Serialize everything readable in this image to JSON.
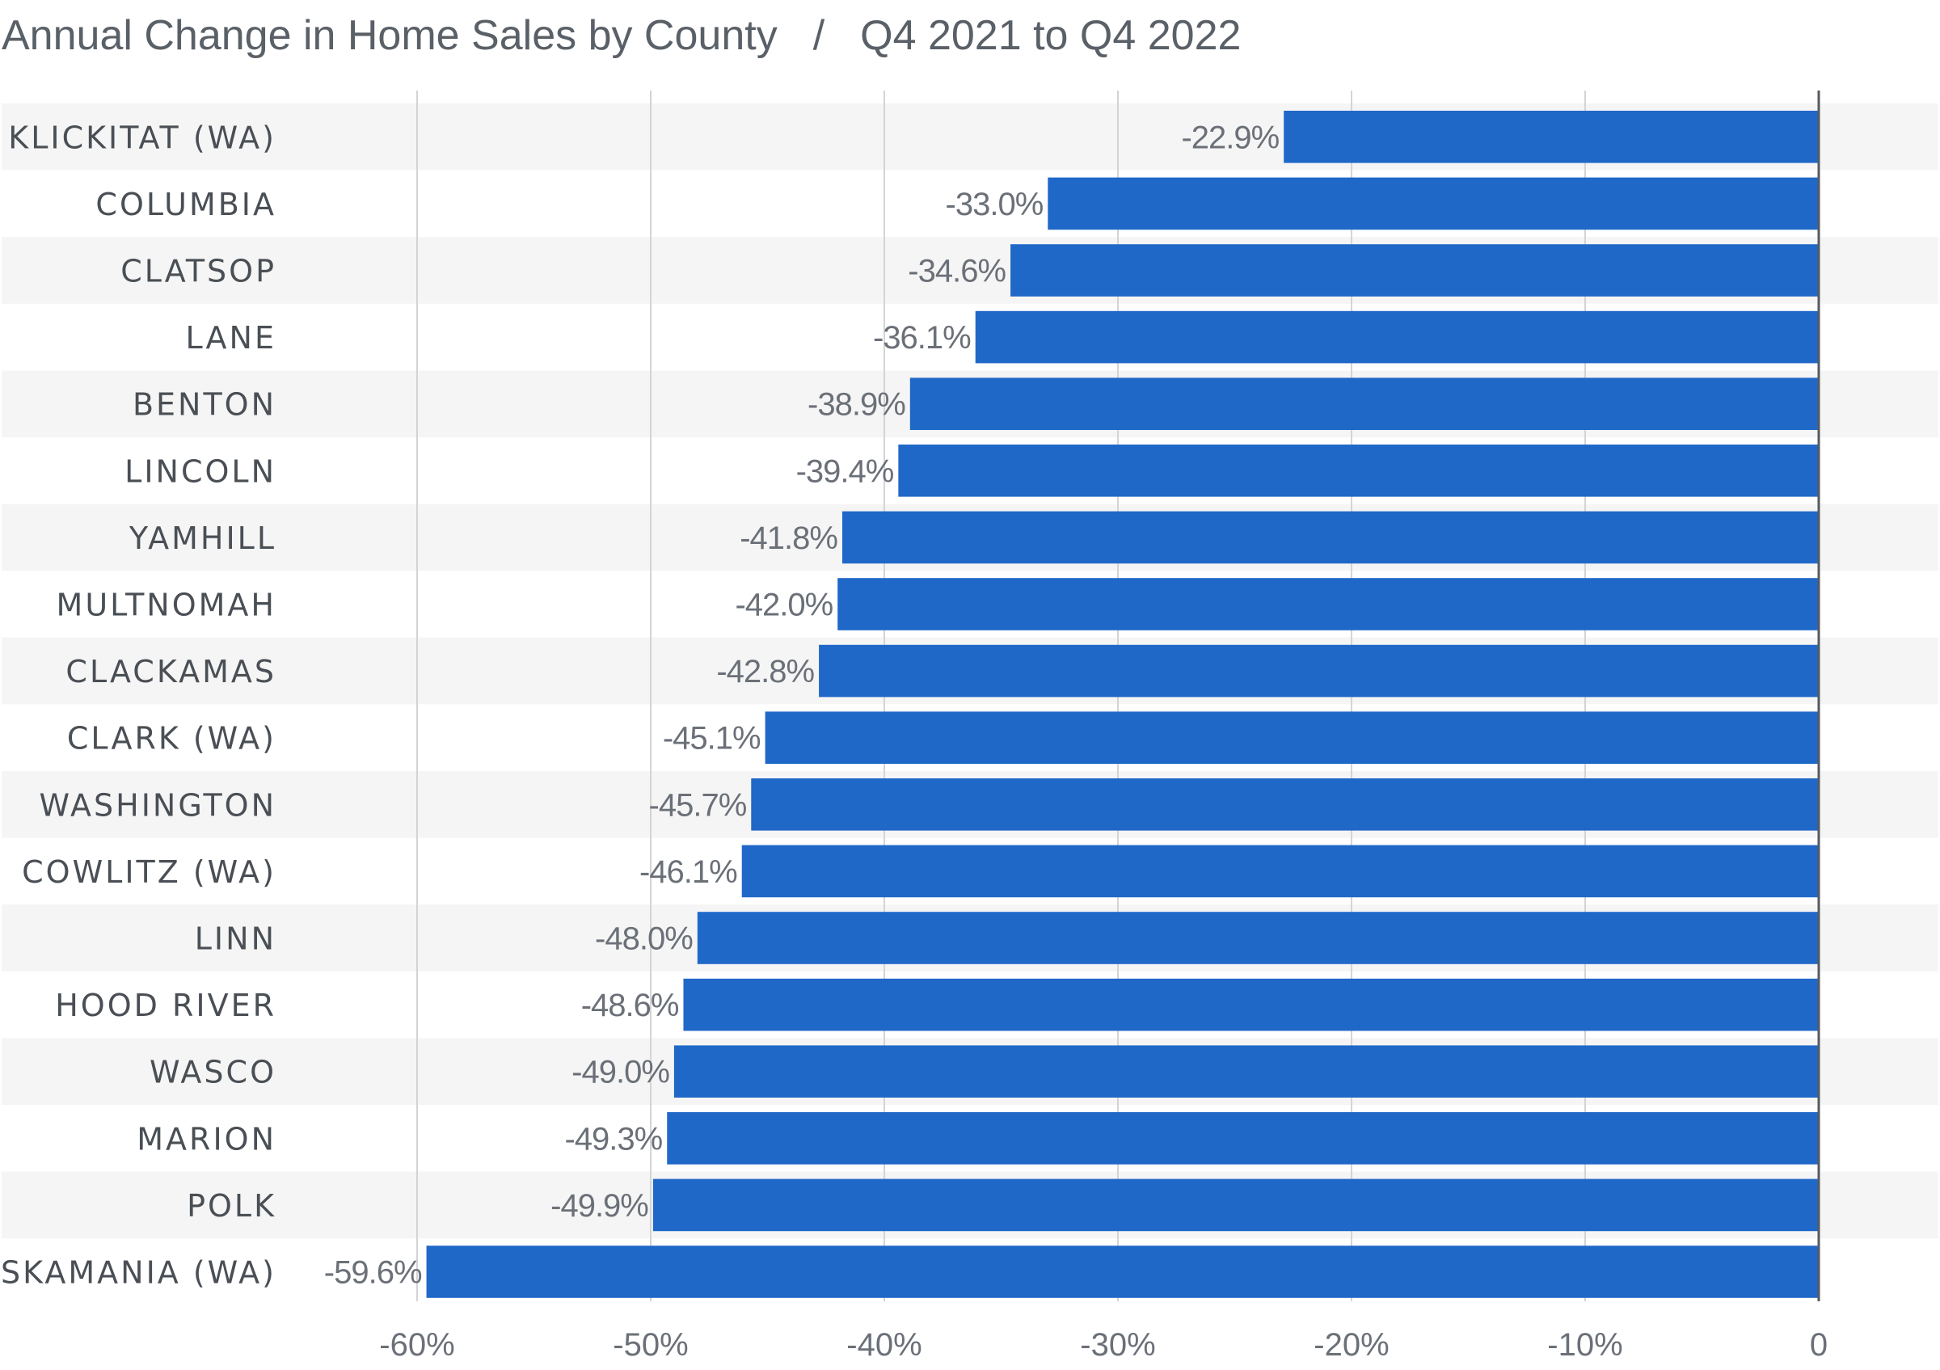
{
  "title": {
    "main": "Annual Change in Home Sales by County",
    "separator": "/",
    "period": "Q4 2021 to Q4 2022"
  },
  "colors": {
    "bar": "#2068c8",
    "band": "#f5f5f5",
    "grid": "#d4d4d4",
    "zero_line": "#555a60",
    "label_text": "#4a4f55",
    "value_text": "#6b7078"
  },
  "chart_data": {
    "type": "bar",
    "orientation": "horizontal",
    "title": "Annual Change in Home Sales by County / Q4 2021 to Q4 2022",
    "xlabel": "",
    "ylabel": "",
    "xlim": [
      -60,
      0
    ],
    "grid": true,
    "categories": [
      "KLICKITAT (WA)",
      "COLUMBIA",
      "CLATSOP",
      "LANE",
      "BENTON",
      "LINCOLN",
      "YAMHILL",
      "MULTNOMAH",
      "CLACKAMAS",
      "CLARK (WA)",
      "WASHINGTON",
      "COWLITZ (WA)",
      "LINN",
      "HOOD RIVER",
      "WASCO",
      "MARION",
      "POLK",
      "SKAMANIA (WA)"
    ],
    "values": [
      -22.9,
      -33.0,
      -34.6,
      -36.1,
      -38.9,
      -39.4,
      -41.8,
      -42.0,
      -42.8,
      -45.1,
      -45.7,
      -46.1,
      -48.0,
      -48.6,
      -49.0,
      -49.3,
      -49.9,
      -59.6
    ],
    "value_labels": [
      "-22.9%",
      "-33.0%",
      "-34.6%",
      "-36.1%",
      "-38.9%",
      "-39.4%",
      "-41.8%",
      "-42.0%",
      "-42.8%",
      "-45.1%",
      "-45.7%",
      "-46.1%",
      "-48.0%",
      "-48.6%",
      "-49.0%",
      "-49.3%",
      "-49.9%",
      "-59.6%"
    ],
    "x_ticks": [
      -60,
      -50,
      -40,
      -30,
      -20,
      -10,
      0
    ],
    "x_tick_labels": [
      "-60%",
      "-50%",
      "-40%",
      "-30%",
      "-20%",
      "-10%",
      "0"
    ]
  }
}
